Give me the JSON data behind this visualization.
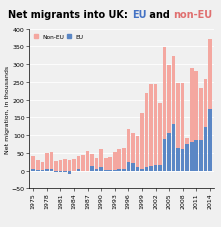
{
  "years": [
    1975,
    1976,
    1977,
    1978,
    1979,
    1980,
    1981,
    1982,
    1983,
    1984,
    1985,
    1986,
    1987,
    1988,
    1989,
    1990,
    1991,
    1992,
    1993,
    1994,
    1995,
    1996,
    1997,
    1998,
    1999,
    2000,
    2001,
    2002,
    2003,
    2004,
    2005,
    2006,
    2007,
    2008,
    2009,
    2010,
    2011,
    2012,
    2013,
    2014
  ],
  "non_eu": [
    41,
    30,
    25,
    50,
    52,
    27,
    29,
    32,
    29,
    32,
    42,
    44,
    56,
    47,
    36,
    60,
    34,
    37,
    52,
    60,
    64,
    116,
    107,
    96,
    162,
    218,
    243,
    244,
    190,
    349,
    297,
    323,
    247,
    246,
    92,
    290,
    280,
    232,
    257,
    370
  ],
  "eu": [
    5,
    2,
    2,
    3,
    3,
    -5,
    -5,
    -5,
    -10,
    0,
    3,
    0,
    0,
    12,
    5,
    10,
    2,
    2,
    2,
    3,
    5,
    25,
    20,
    10,
    5,
    10,
    13,
    15,
    15,
    90,
    105,
    130,
    63,
    60,
    75,
    80,
    85,
    87,
    124,
    174
  ],
  "non_eu_color": "#f4a7a0",
  "eu_color": "#5b87c5",
  "ylabel": "Net migration, in thousands",
  "ylim": [
    -50,
    400
  ],
  "xlim": [
    1974.0,
    2015.0
  ],
  "yticks": [
    -50,
    0,
    50,
    100,
    150,
    200,
    250,
    300,
    350,
    400
  ],
  "xticks": [
    1975,
    1978,
    1981,
    1984,
    1987,
    1990,
    1993,
    1996,
    1999,
    2002,
    2005,
    2008,
    2011,
    2014
  ],
  "background_color": "#f0f0f0",
  "legend_non_eu_label": "Non-EU",
  "legend_eu_label": "EU",
  "title_fontsize": 7.0,
  "bar_width": 0.8,
  "tick_fontsize": 4.5,
  "ylabel_fontsize": 4.5,
  "legend_fontsize": 4.2,
  "title_eu_color": "#4472c4",
  "title_noneu_color": "#e07070"
}
